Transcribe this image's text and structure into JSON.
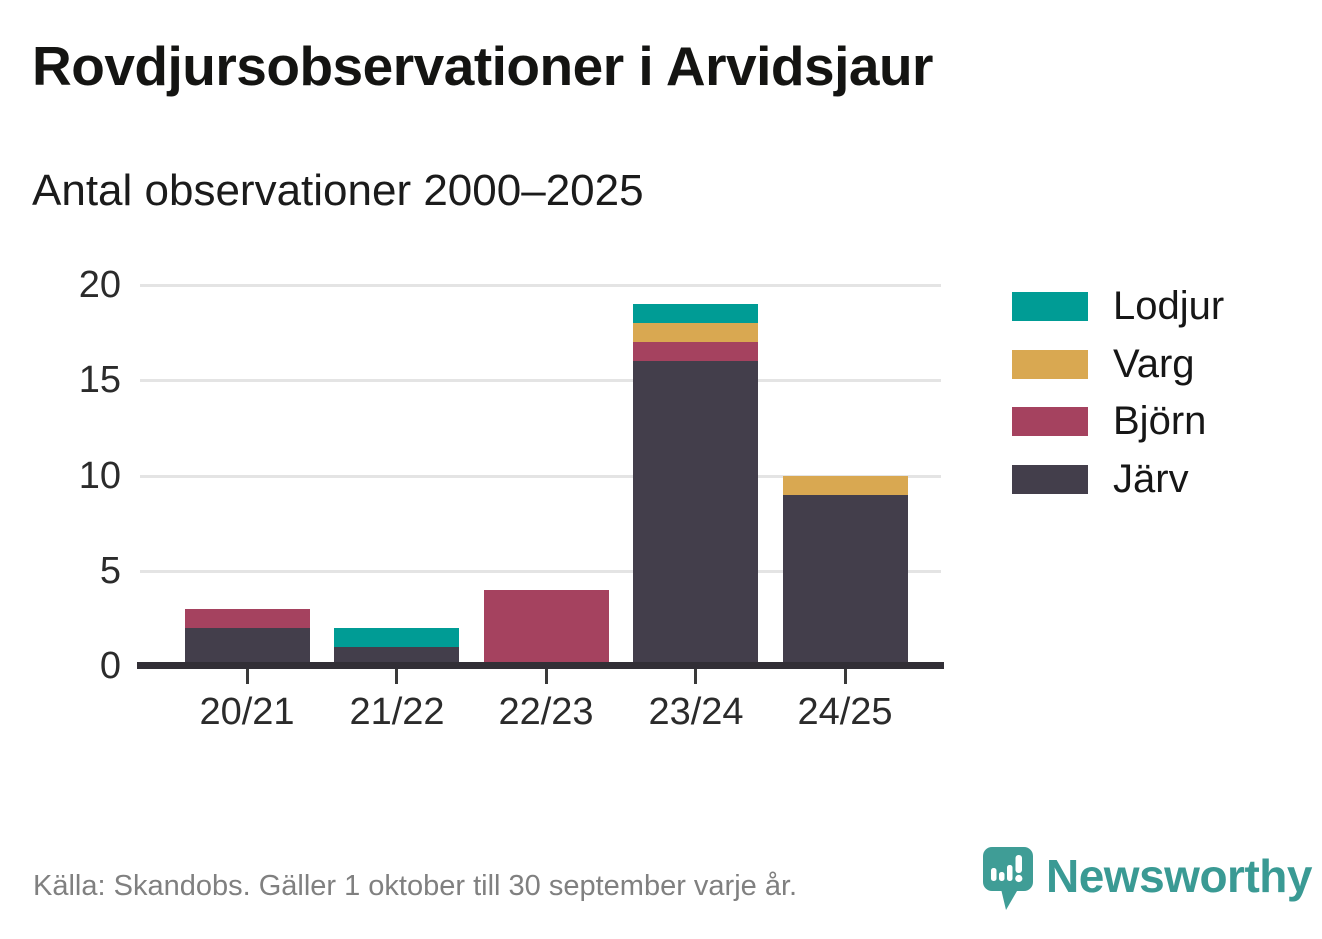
{
  "header": {
    "title": "Rovdjursobservationer i Arvidsjaur",
    "subtitle": "Antal observationer 2000–2025"
  },
  "chart_data": {
    "type": "bar",
    "stacked": true,
    "title": "Rovdjursobservationer i Arvidsjaur",
    "subtitle": "Antal observationer 2000–2025",
    "categories": [
      "20/21",
      "21/22",
      "22/23",
      "23/24",
      "24/25"
    ],
    "series": [
      {
        "name": "Lodjur",
        "color": "#009c95",
        "values": [
          0,
          1,
          0,
          1,
          0
        ]
      },
      {
        "name": "Varg",
        "color": "#d9a851",
        "values": [
          0,
          0,
          0,
          1,
          1
        ]
      },
      {
        "name": "Björn",
        "color": "#a5425f",
        "values": [
          1,
          0,
          4,
          1,
          0
        ]
      },
      {
        "name": "Järv",
        "color": "#433e4b",
        "values": [
          2,
          1,
          0,
          16,
          9
        ]
      }
    ],
    "stack_order_bottom_to_top": [
      "Järv",
      "Björn",
      "Varg",
      "Lodjur"
    ],
    "totals": [
      3,
      2,
      4,
      19,
      10
    ],
    "ylim": [
      0,
      20
    ],
    "yticks": [
      0,
      5,
      10,
      15,
      20
    ],
    "grid": "horizontal",
    "legend_position": "right"
  },
  "footer": {
    "source": "Källa: Skandobs. Gäller 1 oktober till 30 september varje år.",
    "logo_text": "Newsworthy"
  },
  "colors": {
    "grid": "#e4e4e4",
    "axis": "#322f36",
    "tick_text": "#2b2b2b",
    "footer_text": "#808080",
    "brand_teal": "#3a9a94"
  }
}
